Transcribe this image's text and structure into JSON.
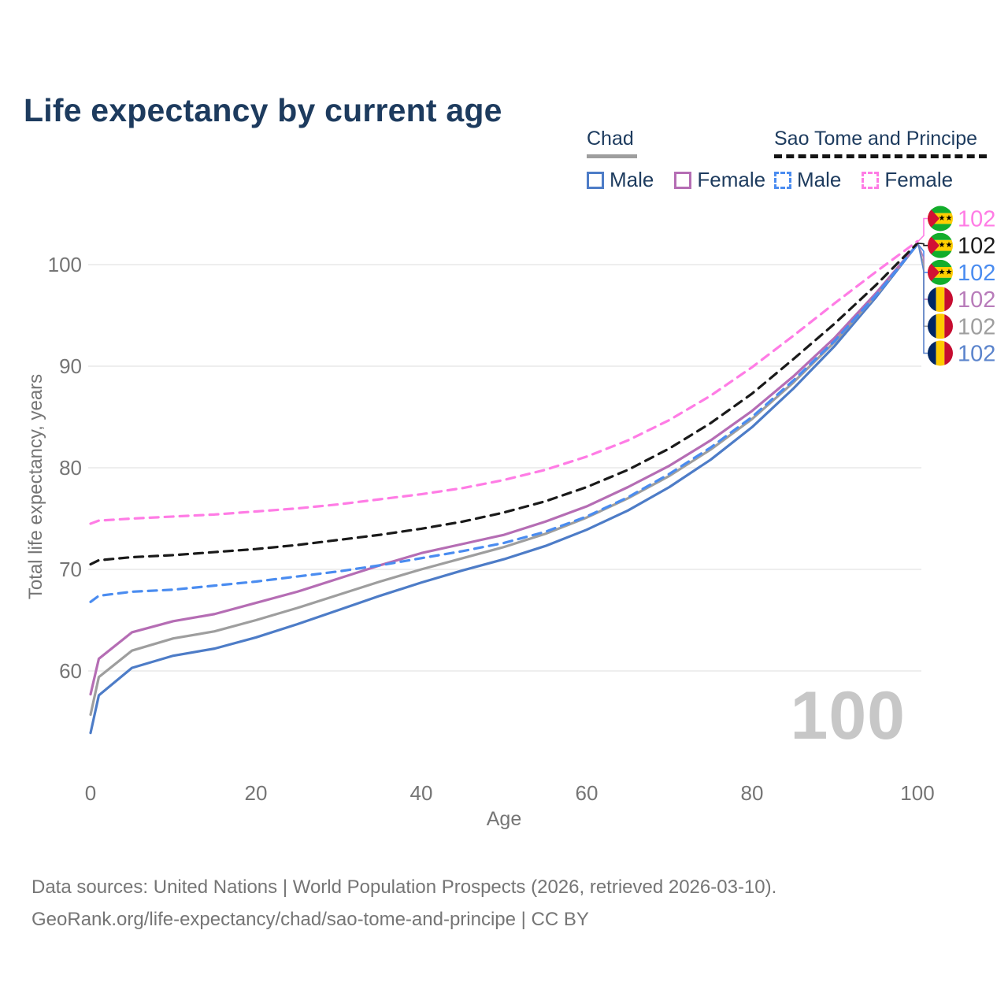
{
  "title": "Life expectancy by current age",
  "legend": {
    "groups": [
      {
        "name": "Chad",
        "line_style": "solid",
        "underline_color": "#9e9e9e",
        "items": [
          {
            "label": "Male",
            "color": "#4d7cc7"
          },
          {
            "label": "Female",
            "color": "#b56db4"
          }
        ]
      },
      {
        "name": "Sao Tome and Principe",
        "line_style": "dashed",
        "underline_color": "#141414",
        "items": [
          {
            "label": "Male",
            "color": "#4a8cf0"
          },
          {
            "label": "Female",
            "color": "#ff7ce5"
          }
        ]
      }
    ]
  },
  "chart_data": {
    "type": "line",
    "title": "Life expectancy by current age",
    "xlabel": "Age",
    "ylabel": "Total life expectancy, years",
    "xlim": [
      0,
      100
    ],
    "ylim": [
      53,
      104
    ],
    "x_ticks": [
      0,
      20,
      40,
      60,
      80,
      100
    ],
    "y_ticks": [
      60,
      70,
      80,
      90,
      100
    ],
    "grid": "horizontal",
    "legend_position": "top-right",
    "x": [
      0,
      1,
      5,
      10,
      15,
      20,
      25,
      30,
      35,
      40,
      45,
      50,
      55,
      60,
      65,
      70,
      75,
      80,
      85,
      90,
      95,
      100
    ],
    "series": [
      {
        "name": "Chad Male",
        "country": "Chad",
        "sex": "Male",
        "style": "solid",
        "color": "#4d7cc7",
        "values": [
          53.9,
          57.6,
          60.3,
          61.5,
          62.2,
          63.3,
          64.6,
          66.0,
          67.4,
          68.7,
          69.9,
          71.0,
          72.3,
          73.9,
          75.8,
          78.1,
          80.8,
          84.0,
          87.8,
          92.0,
          96.8,
          102.0
        ]
      },
      {
        "name": "Chad Total",
        "country": "Chad",
        "sex": "Both",
        "style": "solid",
        "color": "#9e9e9e",
        "values": [
          55.7,
          59.4,
          62.0,
          63.2,
          63.9,
          65.0,
          66.2,
          67.5,
          68.8,
          70.0,
          71.1,
          72.2,
          73.5,
          75.1,
          77.0,
          79.2,
          81.8,
          84.8,
          88.4,
          92.4,
          97.0,
          102.0
        ]
      },
      {
        "name": "Chad Female",
        "country": "Chad",
        "sex": "Female",
        "style": "solid",
        "color": "#b56db4",
        "values": [
          57.7,
          61.2,
          63.8,
          64.9,
          65.6,
          66.7,
          67.8,
          69.1,
          70.4,
          71.6,
          72.5,
          73.4,
          74.7,
          76.2,
          78.1,
          80.2,
          82.7,
          85.6,
          89.0,
          92.8,
          97.2,
          102.0
        ]
      },
      {
        "name": "Sao Tome and Principe Male",
        "country": "Sao Tome and Principe",
        "sex": "Male",
        "style": "dashed",
        "color": "#4a8cf0",
        "values": [
          66.8,
          67.4,
          67.8,
          68.0,
          68.4,
          68.8,
          69.3,
          69.8,
          70.4,
          71.1,
          71.8,
          72.6,
          73.7,
          75.2,
          77.1,
          79.4,
          82.0,
          85.0,
          88.6,
          92.5,
          97.0,
          102.0
        ]
      },
      {
        "name": "Sao Tome and Principe Total",
        "country": "Sao Tome and Principe",
        "sex": "Both",
        "style": "dashed",
        "color": "#1a1a1a",
        "values": [
          70.5,
          70.9,
          71.2,
          71.4,
          71.7,
          72.0,
          72.4,
          72.9,
          73.4,
          74.0,
          74.7,
          75.6,
          76.7,
          78.1,
          79.8,
          81.9,
          84.4,
          87.3,
          90.7,
          94.2,
          98.0,
          102.1
        ]
      },
      {
        "name": "Sao Tome and Principe Female",
        "country": "Sao Tome and Principe",
        "sex": "Female",
        "style": "dashed",
        "color": "#ff7ce5",
        "values": [
          74.5,
          74.8,
          75.0,
          75.2,
          75.4,
          75.7,
          76.0,
          76.4,
          76.9,
          77.4,
          78.0,
          78.8,
          79.8,
          81.1,
          82.7,
          84.7,
          87.1,
          89.9,
          93.0,
          96.2,
          99.3,
          102.3
        ]
      }
    ]
  },
  "right_labels": [
    {
      "flag": "sao-tome-and-principe",
      "value": "102",
      "color": "#ff7ce5",
      "series_index": 5
    },
    {
      "flag": "sao-tome-and-principe",
      "value": "102",
      "color": "#1a1a1a",
      "series_index": 4
    },
    {
      "flag": "sao-tome-and-principe",
      "value": "102",
      "color": "#4a8cf0",
      "series_index": 3
    },
    {
      "flag": "chad",
      "value": "102",
      "color": "#b87cba",
      "series_index": 2
    },
    {
      "flag": "chad",
      "value": "102",
      "color": "#9e9e9e",
      "series_index": 1
    },
    {
      "flag": "chad",
      "value": "102",
      "color": "#5b84cc",
      "series_index": 0
    }
  ],
  "flag_colors": {
    "chad": {
      "blue": "#002664",
      "yellow": "#fecb00",
      "red": "#c60c30"
    },
    "sao_tome_and_principe": {
      "green": "#12ad2b",
      "yellow": "#ffce00",
      "red": "#d21034",
      "star": "#000000"
    }
  },
  "watermark": {
    "text": "100"
  },
  "footer": {
    "line1": "Data sources: United Nations | World Population Prospects (2026, retrieved 2026-03-10).",
    "line2": "GeoRank.org/life-expectancy/chad/sao-tome-and-principe | CC BY"
  },
  "theme": {
    "title_color": "#1d3b5e",
    "axis_text_color": "#757575",
    "gridline_color": "#e9e9e9",
    "watermark_color": "#c7c7c7"
  }
}
